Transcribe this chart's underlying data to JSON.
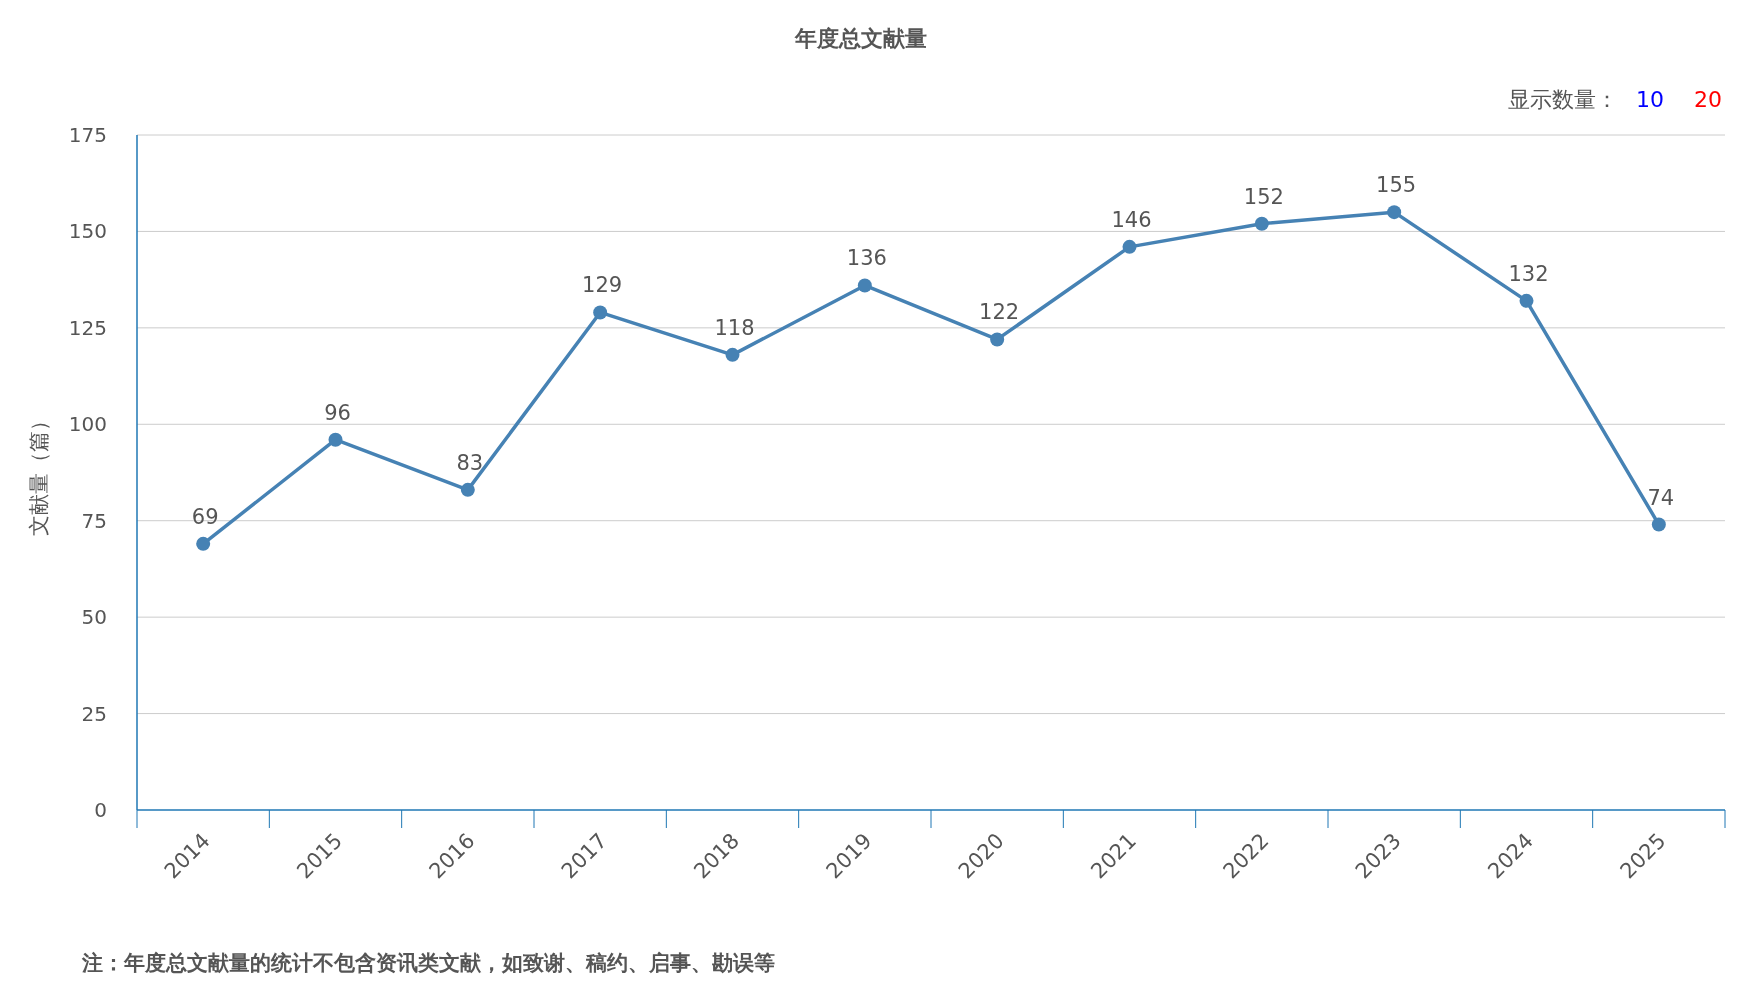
{
  "chart_data": {
    "type": "line",
    "title": "年度总文献量",
    "ylabel": "文献量（篇）",
    "categories": [
      "2014",
      "2015",
      "2016",
      "2017",
      "2018",
      "2019",
      "2020",
      "2021",
      "2022",
      "2023",
      "2024",
      "2025"
    ],
    "series": [
      {
        "color": "#4682b4",
        "values": [
          69,
          96,
          83,
          129,
          118,
          136,
          122,
          146,
          152,
          155,
          132,
          74
        ]
      }
    ],
    "ylim": [
      0,
      175
    ],
    "yticks": [
      0,
      25,
      50,
      75,
      100,
      125,
      150,
      175
    ],
    "grid": "y",
    "marker": "circle",
    "data_labels": true,
    "annotations": [
      "显示数量：",
      "10",
      "20",
      "注：年度总文献量的统计不包含资讯类文献，如致谢、稿约、启事、勘误等"
    ]
  }
}
